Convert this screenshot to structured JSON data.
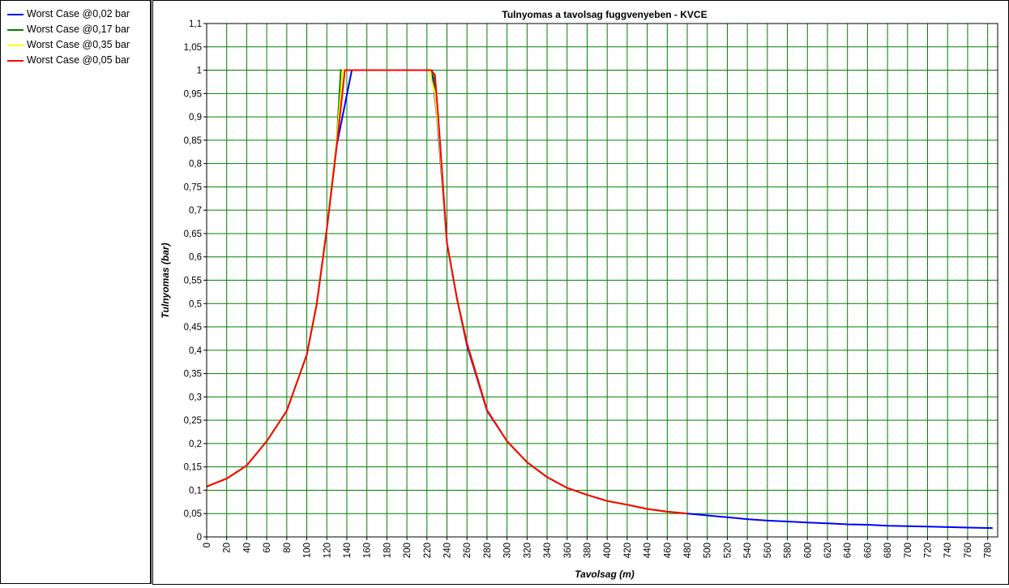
{
  "legend": [
    {
      "label": "Worst Case @0,02 bar",
      "color": "#0000ff"
    },
    {
      "label": "Worst Case @0,17 bar",
      "color": "#007f00"
    },
    {
      "label": "Worst Case @0,35 bar",
      "color": "#ffff00"
    },
    {
      "label": "Worst Case @0,05 bar",
      "color": "#ff0000"
    }
  ],
  "chart_data": {
    "type": "line",
    "title": "Tulnyomas a tavolsag fuggvenyeben - KVCE",
    "xlabel": "Tavolsag (m)",
    "ylabel": "Tulnyomas (bar)",
    "xlim": [
      0,
      790
    ],
    "ylim": [
      0,
      1.1
    ],
    "grid": true,
    "grid_color": "#008000",
    "x_ticks": [
      "0",
      "20",
      "40",
      "60",
      "80",
      "100",
      "120",
      "140",
      "160",
      "180",
      "200",
      "220",
      "240",
      "260",
      "280",
      "300",
      "320",
      "340",
      "360",
      "380",
      "400",
      "420",
      "440",
      "460",
      "480",
      "500",
      "520",
      "540",
      "560",
      "580",
      "600",
      "620",
      "640",
      "660",
      "680",
      "700",
      "720",
      "740",
      "760",
      "780"
    ],
    "y_ticks": [
      "0",
      "0,05",
      "0,1",
      "0,15",
      "0,2",
      "0,25",
      "0,3",
      "0,35",
      "0,4",
      "0,45",
      "0,5",
      "0,55",
      "0,6",
      "0,65",
      "0,7",
      "0,75",
      "0,8",
      "0,85",
      "0,9",
      "0,95",
      "1",
      "1,05",
      "1,1"
    ],
    "legend_placement": "left panel",
    "series": [
      {
        "name": "Worst Case @0,02 bar",
        "color": "#0000ff",
        "points": [
          [
            0,
            0.108
          ],
          [
            20,
            0.125
          ],
          [
            40,
            0.153
          ],
          [
            60,
            0.205
          ],
          [
            80,
            0.27
          ],
          [
            100,
            0.39
          ],
          [
            110,
            0.5
          ],
          [
            120,
            0.66
          ],
          [
            130,
            0.84
          ],
          [
            145,
            1.0
          ],
          [
            225,
            1.0
          ],
          [
            230,
            0.9
          ],
          [
            240,
            0.63
          ],
          [
            250,
            0.51
          ],
          [
            260,
            0.41
          ],
          [
            280,
            0.27
          ],
          [
            300,
            0.205
          ],
          [
            320,
            0.16
          ],
          [
            340,
            0.128
          ],
          [
            360,
            0.105
          ],
          [
            380,
            0.09
          ],
          [
            400,
            0.077
          ],
          [
            420,
            0.069
          ],
          [
            440,
            0.06
          ],
          [
            460,
            0.054
          ],
          [
            480,
            0.05
          ],
          [
            500,
            0.046
          ],
          [
            520,
            0.042
          ],
          [
            540,
            0.038
          ],
          [
            560,
            0.035
          ],
          [
            580,
            0.033
          ],
          [
            600,
            0.031
          ],
          [
            620,
            0.029
          ],
          [
            640,
            0.027
          ],
          [
            660,
            0.026
          ],
          [
            680,
            0.024
          ],
          [
            700,
            0.023
          ],
          [
            720,
            0.022
          ],
          [
            740,
            0.021
          ],
          [
            760,
            0.02
          ],
          [
            785,
            0.019
          ]
        ]
      },
      {
        "name": "Worst Case @0,17 bar",
        "color": "#007f00",
        "points": [
          [
            0,
            0.108
          ],
          [
            20,
            0.125
          ],
          [
            40,
            0.153
          ],
          [
            60,
            0.205
          ],
          [
            80,
            0.27
          ],
          [
            100,
            0.39
          ],
          [
            110,
            0.5
          ],
          [
            120,
            0.66
          ],
          [
            130,
            0.85
          ],
          [
            134,
            1.0
          ],
          [
            225,
            1.0
          ],
          [
            228,
            0.97
          ],
          [
            232,
            0.86
          ],
          [
            240,
            0.63
          ],
          [
            250,
            0.51
          ],
          [
            260,
            0.415
          ],
          [
            280,
            0.272
          ],
          [
            300,
            0.205
          ],
          [
            320,
            0.16
          ],
          [
            340,
            0.128
          ],
          [
            360,
            0.105
          ],
          [
            380,
            0.09
          ],
          [
            400,
            0.077
          ],
          [
            420,
            0.069
          ],
          [
            440,
            0.06
          ],
          [
            460,
            0.054
          ],
          [
            480,
            0.05
          ]
        ]
      },
      {
        "name": "Worst Case @0,35 bar",
        "color": "#ffff00",
        "points": [
          [
            0,
            0.108
          ],
          [
            20,
            0.125
          ],
          [
            40,
            0.153
          ],
          [
            60,
            0.205
          ],
          [
            80,
            0.27
          ],
          [
            100,
            0.39
          ],
          [
            110,
            0.5
          ],
          [
            120,
            0.66
          ],
          [
            130,
            0.85
          ],
          [
            136,
            1.0
          ],
          [
            222,
            1.0
          ],
          [
            228,
            0.95
          ],
          [
            232,
            0.86
          ],
          [
            240,
            0.63
          ],
          [
            250,
            0.51
          ],
          [
            260,
            0.415
          ],
          [
            280,
            0.272
          ],
          [
            300,
            0.205
          ],
          [
            320,
            0.16
          ],
          [
            340,
            0.128
          ],
          [
            360,
            0.105
          ],
          [
            380,
            0.09
          ],
          [
            400,
            0.077
          ],
          [
            420,
            0.069
          ],
          [
            440,
            0.06
          ],
          [
            460,
            0.054
          ],
          [
            480,
            0.05
          ]
        ]
      },
      {
        "name": "Worst Case @0,05 bar",
        "color": "#ff0000",
        "points": [
          [
            0,
            0.108
          ],
          [
            20,
            0.125
          ],
          [
            40,
            0.153
          ],
          [
            60,
            0.205
          ],
          [
            80,
            0.27
          ],
          [
            100,
            0.39
          ],
          [
            110,
            0.5
          ],
          [
            120,
            0.66
          ],
          [
            130,
            0.84
          ],
          [
            138,
            1.0
          ],
          [
            224,
            1.0
          ],
          [
            228,
            0.99
          ],
          [
            232,
            0.88
          ],
          [
            240,
            0.63
          ],
          [
            250,
            0.51
          ],
          [
            260,
            0.415
          ],
          [
            280,
            0.272
          ],
          [
            300,
            0.205
          ],
          [
            320,
            0.16
          ],
          [
            340,
            0.128
          ],
          [
            360,
            0.105
          ],
          [
            380,
            0.09
          ],
          [
            400,
            0.077
          ],
          [
            420,
            0.069
          ],
          [
            440,
            0.06
          ],
          [
            460,
            0.054
          ],
          [
            480,
            0.05
          ]
        ]
      }
    ]
  }
}
